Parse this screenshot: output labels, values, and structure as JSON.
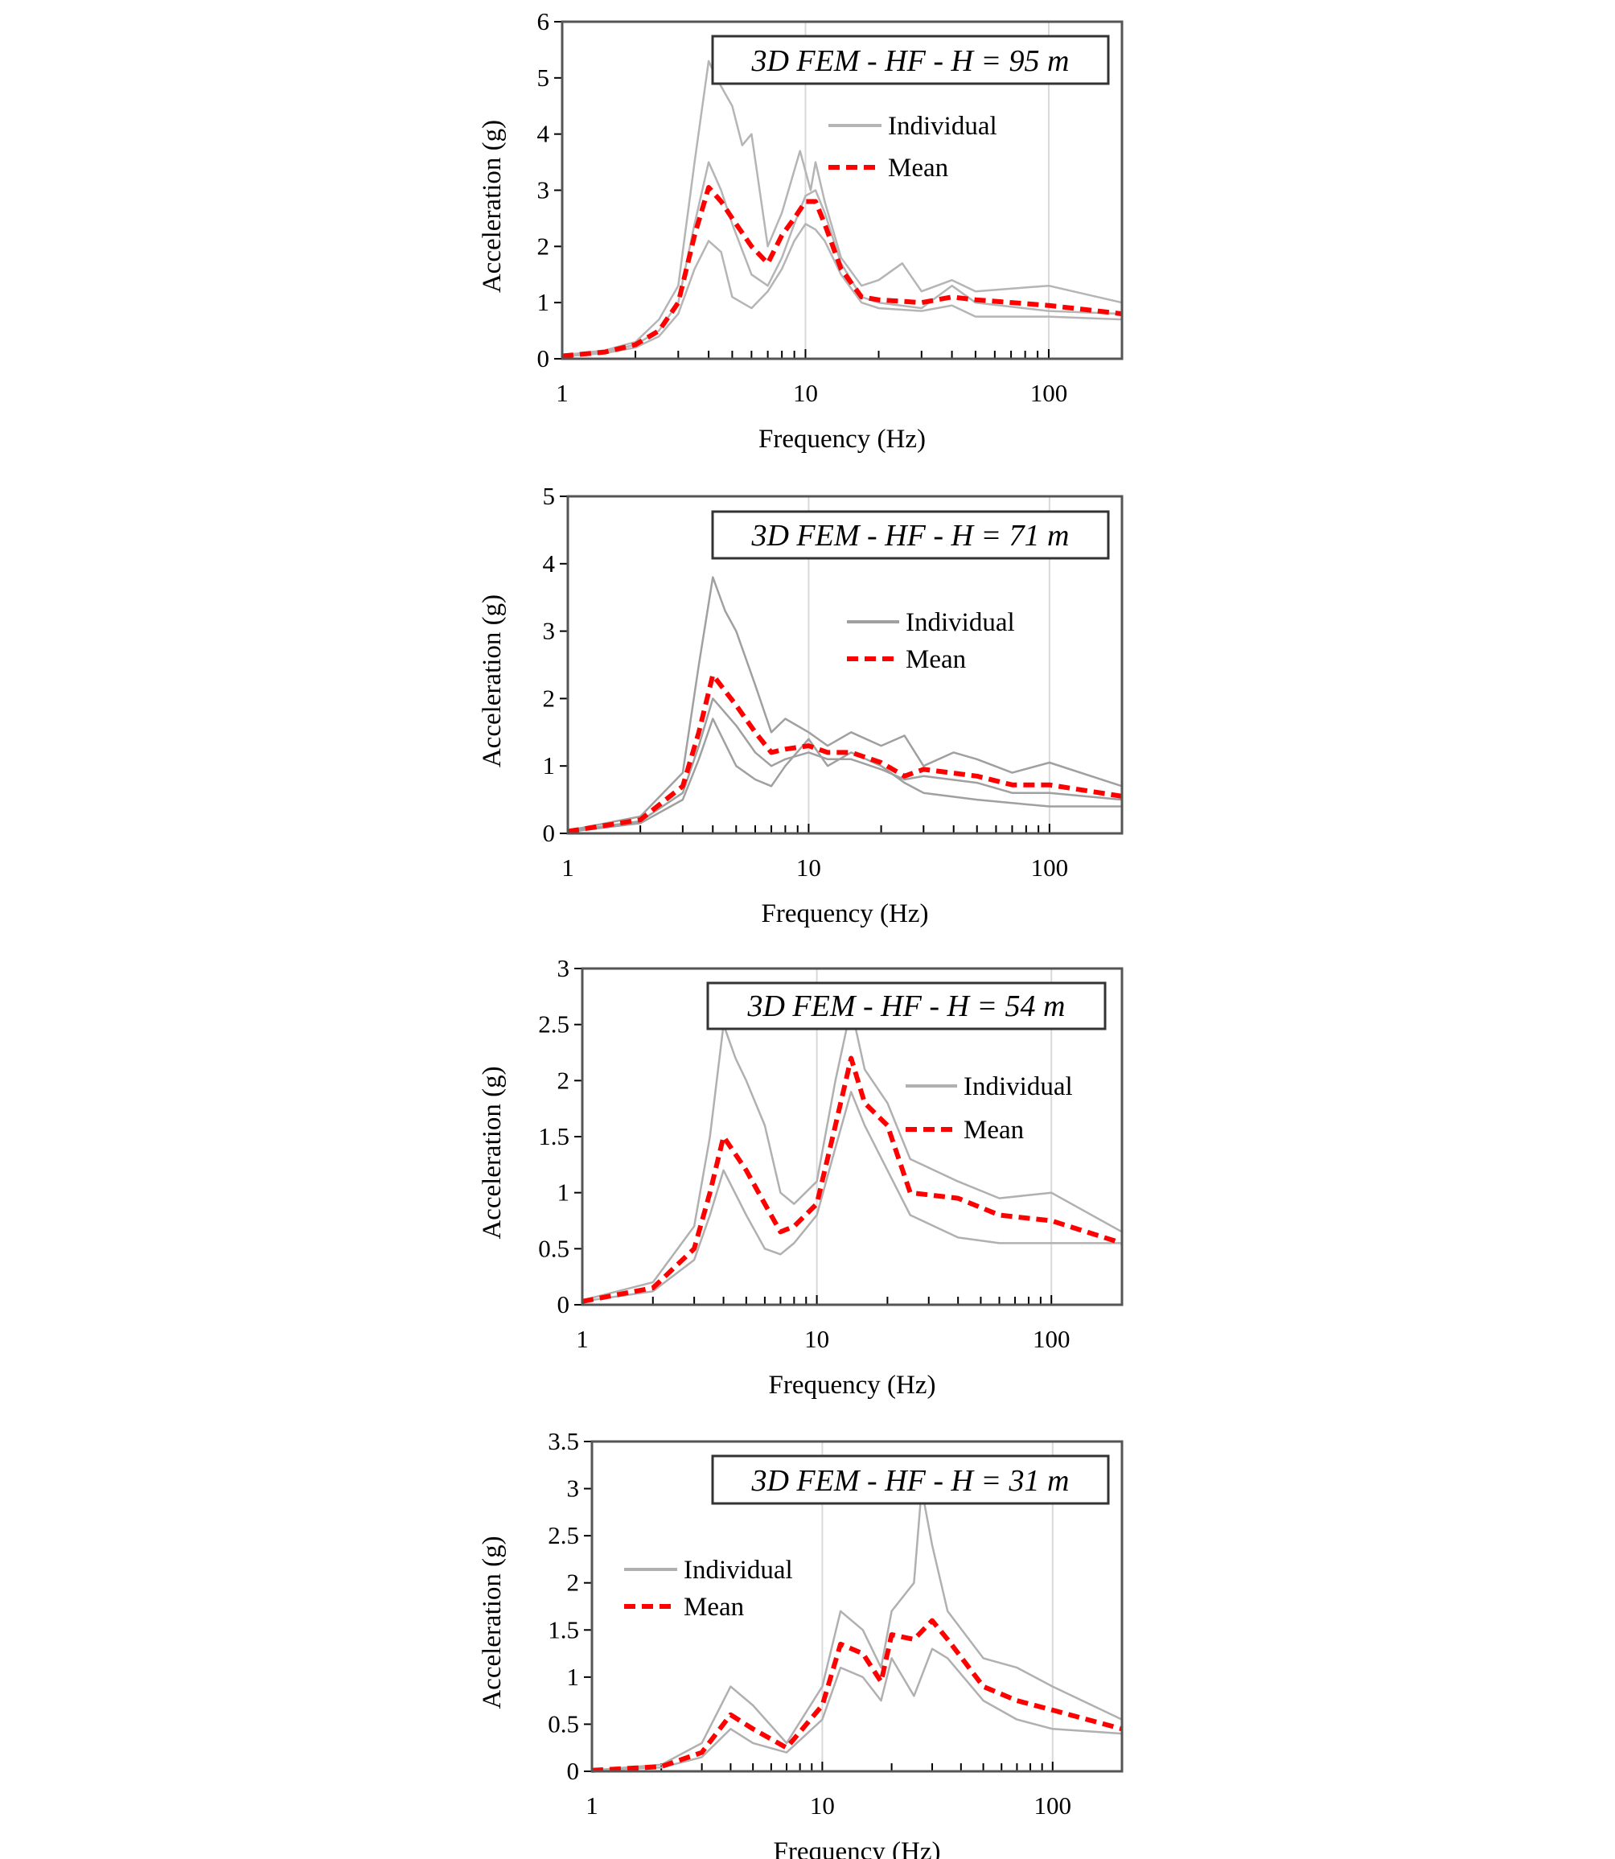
{
  "chart_data": [
    {
      "type": "line",
      "title": "3D FEM - HF - H = 95 m",
      "xlabel": "Frequency (Hz)",
      "ylabel": "Acceleration (g)",
      "xscale": "log",
      "xlim": [
        1,
        200
      ],
      "ylim": [
        0,
        6
      ],
      "xticks": [
        "1",
        "10",
        "100"
      ],
      "yticks": [
        "0",
        "1",
        "2",
        "3",
        "4",
        "5",
        "6"
      ],
      "legend": {
        "position": "top-right",
        "entries": [
          "Individual",
          "Mean"
        ]
      },
      "grid": "vertical major",
      "colors": {
        "individual": "#b5b5b5",
        "mean": "#ff0000"
      },
      "series": [
        {
          "name": "Mean",
          "x": [
            1,
            1.5,
            2,
            2.5,
            3,
            3.5,
            4,
            4.5,
            5,
            6,
            7,
            8,
            9,
            10,
            11,
            12,
            14,
            17,
            20,
            30,
            40,
            50,
            100,
            200
          ],
          "y": [
            0.05,
            0.12,
            0.25,
            0.5,
            1.0,
            2.2,
            3.05,
            2.8,
            2.5,
            2.0,
            1.7,
            2.2,
            2.5,
            2.8,
            2.8,
            2.4,
            1.6,
            1.1,
            1.05,
            1.0,
            1.1,
            1.05,
            0.95,
            0.8
          ]
        },
        {
          "name": "Individual",
          "x": [
            1,
            1.5,
            2,
            2.5,
            3,
            3.5,
            4,
            4.3,
            5,
            5.5,
            6,
            7,
            8,
            9.5,
            10.5,
            11,
            12,
            14,
            17,
            20,
            25,
            30,
            40,
            50,
            100,
            200
          ],
          "y": [
            0.06,
            0.15,
            0.3,
            0.7,
            1.3,
            3.5,
            5.3,
            5.0,
            4.5,
            3.8,
            4.0,
            2.0,
            2.6,
            3.7,
            3.0,
            3.5,
            2.8,
            1.8,
            1.3,
            1.4,
            1.7,
            1.2,
            1.4,
            1.2,
            1.3,
            1.0
          ]
        },
        {
          "name": "Individual",
          "x": [
            1,
            1.5,
            2,
            2.5,
            3,
            3.5,
            4,
            4.5,
            5,
            6,
            7,
            8,
            9,
            10,
            11,
            12,
            14,
            17,
            20,
            30,
            40,
            50,
            100,
            200
          ],
          "y": [
            0.05,
            0.12,
            0.25,
            0.5,
            1.0,
            2.4,
            3.5,
            3.0,
            2.4,
            1.5,
            1.3,
            1.8,
            2.4,
            2.9,
            3.0,
            2.6,
            1.7,
            1.1,
            1.0,
            0.9,
            1.3,
            1.0,
            0.85,
            0.8
          ]
        },
        {
          "name": "Individual",
          "x": [
            1,
            1.5,
            2,
            2.5,
            3,
            3.5,
            4,
            4.5,
            5,
            6,
            7,
            8,
            9,
            10,
            11,
            12,
            14,
            17,
            20,
            30,
            40,
            50,
            100,
            200
          ],
          "y": [
            0.04,
            0.1,
            0.2,
            0.4,
            0.8,
            1.6,
            2.1,
            1.9,
            1.1,
            0.9,
            1.2,
            1.6,
            2.1,
            2.4,
            2.3,
            2.1,
            1.5,
            1.0,
            0.9,
            0.85,
            0.95,
            0.75,
            0.75,
            0.7
          ]
        }
      ]
    },
    {
      "type": "line",
      "title": "3D FEM - HF - H = 71 m",
      "xlabel": "Frequency (Hz)",
      "ylabel": "Acceleration (g)",
      "xscale": "log",
      "xlim": [
        1,
        200
      ],
      "ylim": [
        0,
        5
      ],
      "xticks": [
        "1",
        "10",
        "100"
      ],
      "yticks": [
        "0",
        "1",
        "2",
        "3",
        "4",
        "5"
      ],
      "legend": {
        "position": "top-right",
        "entries": [
          "Individual",
          "Mean"
        ]
      },
      "grid": "vertical major",
      "colors": {
        "individual": "#a0a0a0",
        "mean": "#ff0000"
      },
      "series": [
        {
          "name": "Mean",
          "x": [
            1,
            2,
            3,
            3.5,
            4,
            5,
            6,
            7,
            8,
            10,
            12,
            15,
            20,
            25,
            30,
            50,
            70,
            100,
            200
          ],
          "y": [
            0.03,
            0.2,
            0.7,
            1.5,
            2.35,
            1.9,
            1.5,
            1.2,
            1.25,
            1.3,
            1.2,
            1.2,
            1.05,
            0.85,
            0.95,
            0.85,
            0.72,
            0.72,
            0.55
          ]
        },
        {
          "name": "Individual",
          "x": [
            1,
            2,
            3,
            3.5,
            4,
            4.5,
            5,
            6,
            7,
            8,
            10,
            12,
            15,
            20,
            25,
            30,
            40,
            50,
            70,
            100,
            200
          ],
          "y": [
            0.04,
            0.25,
            0.9,
            2.5,
            3.8,
            3.3,
            3.0,
            2.2,
            1.5,
            1.7,
            1.5,
            1.3,
            1.5,
            1.3,
            1.45,
            1.0,
            1.2,
            1.1,
            0.9,
            1.05,
            0.7
          ]
        },
        {
          "name": "Individual",
          "x": [
            1,
            2,
            3,
            3.5,
            4,
            5,
            6,
            7,
            8,
            10,
            12,
            15,
            20,
            25,
            30,
            50,
            70,
            100,
            200
          ],
          "y": [
            0.03,
            0.18,
            0.6,
            1.3,
            2.0,
            1.6,
            1.2,
            1.0,
            1.1,
            1.2,
            1.1,
            1.1,
            0.95,
            0.8,
            0.85,
            0.75,
            0.6,
            0.6,
            0.5
          ]
        },
        {
          "name": "Individual",
          "x": [
            1,
            2,
            3,
            3.5,
            4,
            5,
            6,
            7,
            8,
            10,
            12,
            15,
            20,
            25,
            30,
            50,
            70,
            100,
            200
          ],
          "y": [
            0.02,
            0.15,
            0.5,
            1.1,
            1.7,
            1.0,
            0.8,
            0.7,
            1.0,
            1.4,
            1.0,
            1.2,
            1.0,
            0.75,
            0.6,
            0.5,
            0.45,
            0.4,
            0.4
          ]
        }
      ]
    },
    {
      "type": "line",
      "title": "3D FEM - HF - H = 54 m",
      "xlabel": "Frequency (Hz)",
      "ylabel": "Acceleration (g)",
      "xscale": "log",
      "xlim": [
        1,
        200
      ],
      "ylim": [
        0,
        3
      ],
      "xticks": [
        "1",
        "10",
        "100"
      ],
      "yticks": [
        "0",
        "0.5",
        "1",
        "1.5",
        "2",
        "2.5",
        "3"
      ],
      "legend": {
        "position": "right",
        "entries": [
          "Individual",
          "Mean"
        ]
      },
      "grid": "vertical major",
      "colors": {
        "individual": "#b0b0b0",
        "mean": "#ff0000"
      },
      "series": [
        {
          "name": "Mean",
          "x": [
            1,
            2,
            3,
            3.5,
            4,
            5,
            6,
            7,
            8,
            10,
            12,
            14,
            16,
            20,
            25,
            40,
            60,
            100,
            200
          ],
          "y": [
            0.03,
            0.15,
            0.5,
            1.0,
            1.5,
            1.2,
            0.9,
            0.65,
            0.7,
            0.9,
            1.6,
            2.2,
            1.8,
            1.6,
            1.0,
            0.95,
            0.8,
            0.75,
            0.55
          ]
        },
        {
          "name": "Individual",
          "x": [
            1,
            2,
            3,
            3.5,
            4,
            4.5,
            5,
            6,
            7,
            8,
            10,
            12,
            14,
            16,
            20,
            25,
            40,
            60,
            100,
            200
          ],
          "y": [
            0.04,
            0.2,
            0.7,
            1.5,
            2.5,
            2.2,
            2.0,
            1.6,
            1.0,
            0.9,
            1.1,
            2.0,
            2.65,
            2.1,
            1.8,
            1.3,
            1.1,
            0.95,
            1.0,
            0.65
          ]
        },
        {
          "name": "Individual",
          "x": [
            1,
            2,
            3,
            3.5,
            4,
            5,
            6,
            7,
            8,
            10,
            12,
            14,
            16,
            20,
            25,
            40,
            60,
            100,
            200
          ],
          "y": [
            0.03,
            0.12,
            0.4,
            0.8,
            1.2,
            0.8,
            0.5,
            0.45,
            0.55,
            0.8,
            1.4,
            1.9,
            1.6,
            1.2,
            0.8,
            0.6,
            0.55,
            0.55,
            0.55
          ]
        }
      ]
    },
    {
      "type": "line",
      "title": "3D FEM - HF - H = 31 m",
      "xlabel": "Frequency (Hz)",
      "ylabel": "Acceleration (g)",
      "xscale": "log",
      "xlim": [
        1,
        200
      ],
      "ylim": [
        0,
        3.5
      ],
      "xticks": [
        "1",
        "10",
        "100"
      ],
      "yticks": [
        "0",
        "0.5",
        "1",
        "1.5",
        "2",
        "2.5",
        "3",
        "3.5"
      ],
      "legend": {
        "position": "left",
        "entries": [
          "Individual",
          "Mean"
        ]
      },
      "grid": "vertical major",
      "colors": {
        "individual": "#b0b0b0",
        "mean": "#ff0000"
      },
      "series": [
        {
          "name": "Mean",
          "x": [
            1,
            2,
            3,
            4,
            5,
            7,
            10,
            12,
            15,
            18,
            20,
            25,
            30,
            35,
            50,
            70,
            100,
            200
          ],
          "y": [
            0.01,
            0.05,
            0.2,
            0.6,
            0.45,
            0.25,
            0.7,
            1.35,
            1.25,
            0.95,
            1.45,
            1.4,
            1.6,
            1.4,
            0.9,
            0.75,
            0.65,
            0.45
          ]
        },
        {
          "name": "Individual",
          "x": [
            1,
            2,
            3,
            4,
            5,
            7,
            10,
            12,
            15,
            18,
            20,
            25,
            27,
            30,
            35,
            50,
            70,
            100,
            200
          ],
          "y": [
            0.01,
            0.07,
            0.3,
            0.9,
            0.7,
            0.3,
            0.9,
            1.7,
            1.5,
            1.1,
            1.7,
            2.0,
            3.0,
            2.4,
            1.7,
            1.2,
            1.1,
            0.9,
            0.55
          ]
        },
        {
          "name": "Individual",
          "x": [
            1,
            2,
            3,
            4,
            5,
            7,
            10,
            12,
            15,
            18,
            20,
            25,
            30,
            35,
            50,
            70,
            100,
            200
          ],
          "y": [
            0.01,
            0.04,
            0.15,
            0.45,
            0.3,
            0.2,
            0.55,
            1.1,
            1.0,
            0.75,
            1.2,
            0.8,
            1.3,
            1.2,
            0.75,
            0.55,
            0.45,
            0.4
          ]
        }
      ]
    }
  ]
}
